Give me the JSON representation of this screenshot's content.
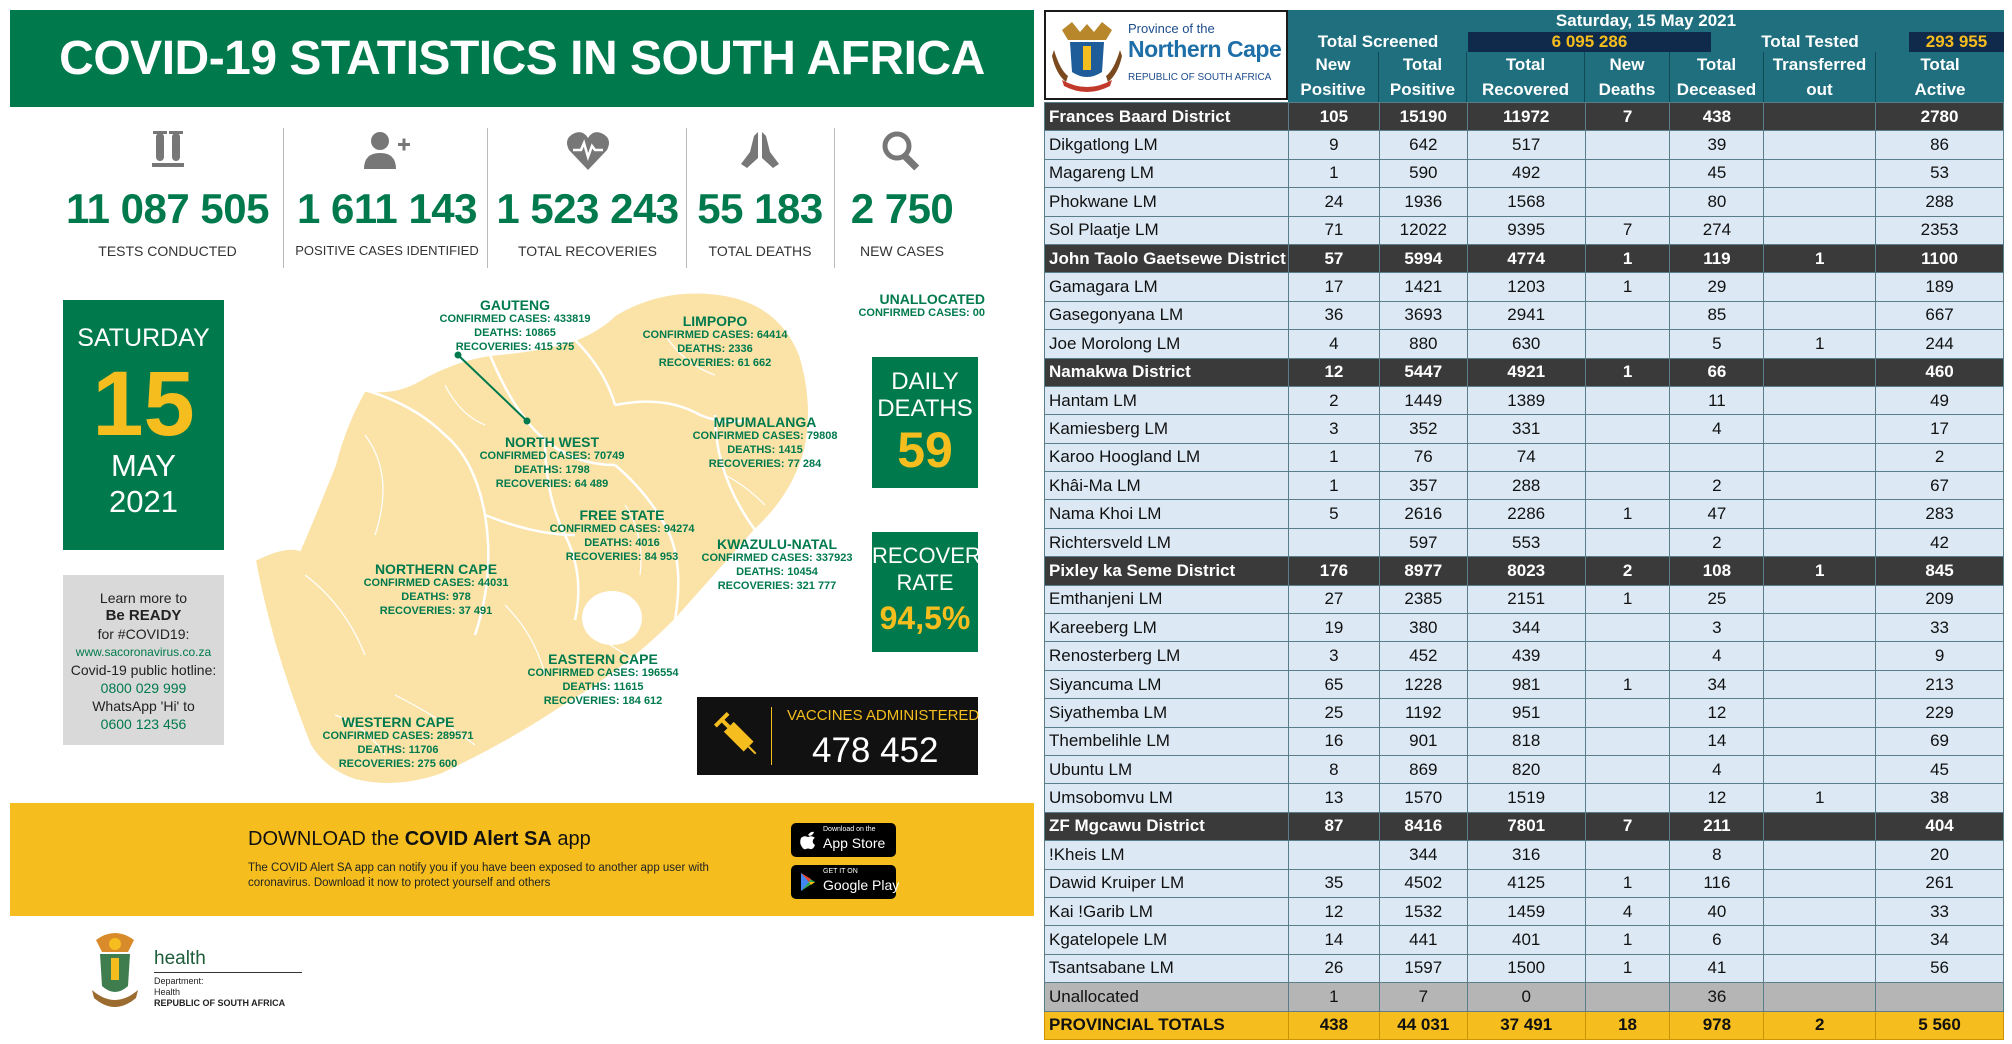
{
  "infographic": {
    "title": "COVID-19 STATISTICS IN SOUTH AFRICA",
    "stats": [
      {
        "icon": "test-tubes-icon",
        "value": "11 087 505",
        "label": "TESTS CONDUCTED"
      },
      {
        "icon": "add-person-icon",
        "value": "1 611 143",
        "label": "POSITIVE CASES IDENTIFIED"
      },
      {
        "icon": "heartbeat-icon",
        "value": "1 523 243",
        "label": "TOTAL RECOVERIES"
      },
      {
        "icon": "praying-hands-icon",
        "value": "55 183",
        "label": "TOTAL DEATHS"
      },
      {
        "icon": "magnifier-icon",
        "value": "2 750",
        "label": "NEW CASES"
      }
    ],
    "date": {
      "weekday": "SATURDAY",
      "day": "15",
      "month": "MAY",
      "year": "2021"
    },
    "info": {
      "l1": "Learn more to",
      "l2": "Be READY",
      "l3": "for #COVID19:",
      "l4": "www.sacoronavirus.co.za",
      "l5": "Covid-19 public hotline:",
      "l6": "0800 029 999",
      "l7": "WhatsApp 'Hi' to",
      "l8": "0600 123 456"
    },
    "provinces": [
      {
        "name": "GAUTENG",
        "cases": "CONFIRMED CASES: 433819",
        "deaths": "DEATHS: 10865",
        "rec": "RECOVERIES: 415 375"
      },
      {
        "name": "LIMPOPO",
        "cases": "CONFIRMED CASES: 64414",
        "deaths": "DEATHS: 2336",
        "rec": "RECOVERIES: 61 662"
      },
      {
        "name": "MPUMALANGA",
        "cases": "CONFIRMED CASES: 79808",
        "deaths": "DEATHS: 1415",
        "rec": "RECOVERIES: 77 284"
      },
      {
        "name": "NORTH WEST",
        "cases": "CONFIRMED CASES: 70749",
        "deaths": "DEATHS: 1798",
        "rec": "RECOVERIES: 64 489"
      },
      {
        "name": "FREE STATE",
        "cases": "CONFIRMED CASES: 94274",
        "deaths": "DEATHS: 4016",
        "rec": "RECOVERIES: 84 953"
      },
      {
        "name": "KWAZULU-NATAL",
        "cases": "CONFIRMED CASES: 337923",
        "deaths": "DEATHS: 10454",
        "rec": "RECOVERIES: 321 777"
      },
      {
        "name": "NORTHERN CAPE",
        "cases": "CONFIRMED CASES: 44031",
        "deaths": "DEATHS: 978",
        "rec": "RECOVERIES: 37 491"
      },
      {
        "name": "EASTERN CAPE",
        "cases": "CONFIRMED CASES: 196554",
        "deaths": "DEATHS: 11615",
        "rec": "RECOVERIES: 184 612"
      },
      {
        "name": "WESTERN CAPE",
        "cases": "CONFIRMED CASES: 289571",
        "deaths": "DEATHS: 11706",
        "rec": "RECOVERIES: 275 600"
      }
    ],
    "unallocated": {
      "name": "UNALLOCATED",
      "cases": "CONFIRMED CASES: 00"
    },
    "daily_deaths": {
      "l1": "DAILY",
      "l2": "DEATHS",
      "value": "59"
    },
    "recovery_rate": {
      "l1": "RECOVERY",
      "l2": "RATE",
      "value": "94,5%"
    },
    "vaccines": {
      "label": "VACCINES ADMINISTERED",
      "value": "478 452"
    },
    "app": {
      "download_prefix": "DOWNLOAD the ",
      "app_name": "COVID Alert SA",
      "download_suffix": " app",
      "desc": "The COVID Alert SA app can notify you if you have been exposed to another app user with coronavirus. Download it now to protect yourself and others",
      "appstore_small": "Download on the",
      "appstore_big": "App Store",
      "gplay_small": "GET IT ON",
      "gplay_big": "Google Play"
    },
    "health": {
      "word": "health",
      "d1": "Department:",
      "d2": "Health",
      "d3": "REPUBLIC OF SOUTH AFRICA"
    }
  },
  "table": {
    "logo": {
      "l1": "Province of the",
      "l2": "Northern Cape",
      "l3": "REPUBLIC OF SOUTH AFRICA"
    },
    "date": "Saturday, 15 May 2021",
    "screened_label": "Total Screened",
    "screened_value": "6 095 286",
    "tested_label": "Total Tested",
    "tested_value": "293 955",
    "columns": [
      {
        "l1": "New",
        "l2": "Positive"
      },
      {
        "l1": "Total",
        "l2": "Positive"
      },
      {
        "l1": "Total",
        "l2": "Recovered"
      },
      {
        "l1": "New",
        "l2": "Deaths"
      },
      {
        "l1": "Total",
        "l2": "Deceased"
      },
      {
        "l1": "Transferred",
        "l2": "out"
      },
      {
        "l1": "Total",
        "l2": "Active"
      }
    ],
    "rows": [
      {
        "type": "dist",
        "cells": [
          "Frances Baard District",
          "105",
          "15190",
          "11972",
          "7",
          "438",
          "",
          "2780"
        ]
      },
      {
        "type": "lm",
        "cells": [
          "Dikgatlong LM",
          "9",
          "642",
          "517",
          "",
          "39",
          "",
          "86"
        ]
      },
      {
        "type": "lm",
        "cells": [
          "Magareng LM",
          "1",
          "590",
          "492",
          "",
          "45",
          "",
          "53"
        ]
      },
      {
        "type": "lm",
        "cells": [
          "Phokwane LM",
          "24",
          "1936",
          "1568",
          "",
          "80",
          "",
          "288"
        ]
      },
      {
        "type": "lm",
        "cells": [
          "Sol Plaatje LM",
          "71",
          "12022",
          "9395",
          "7",
          "274",
          "",
          "2353"
        ]
      },
      {
        "type": "dist",
        "cells": [
          "John Taolo Gaetsewe District",
          "57",
          "5994",
          "4774",
          "1",
          "119",
          "1",
          "1100"
        ]
      },
      {
        "type": "lm",
        "cells": [
          "Gamagara LM",
          "17",
          "1421",
          "1203",
          "1",
          "29",
          "",
          "189"
        ]
      },
      {
        "type": "lm",
        "cells": [
          "Gasegonyana LM",
          "36",
          "3693",
          "2941",
          "",
          "85",
          "",
          "667"
        ]
      },
      {
        "type": "lm",
        "cells": [
          "Joe Morolong LM",
          "4",
          "880",
          "630",
          "",
          "5",
          "1",
          "244"
        ]
      },
      {
        "type": "dist",
        "cells": [
          "Namakwa District",
          "12",
          "5447",
          "4921",
          "1",
          "66",
          "",
          "460"
        ]
      },
      {
        "type": "lm",
        "cells": [
          "Hantam LM",
          "2",
          "1449",
          "1389",
          "",
          "11",
          "",
          "49"
        ]
      },
      {
        "type": "lm",
        "cells": [
          "Kamiesberg LM",
          "3",
          "352",
          "331",
          "",
          "4",
          "",
          "17"
        ]
      },
      {
        "type": "lm",
        "cells": [
          "Karoo Hoogland LM",
          "1",
          "76",
          "74",
          "",
          "",
          "",
          "2"
        ]
      },
      {
        "type": "lm",
        "cells": [
          "Khâi-Ma LM",
          "1",
          "357",
          "288",
          "",
          "2",
          "",
          "67"
        ]
      },
      {
        "type": "lm",
        "cells": [
          "Nama Khoi LM",
          "5",
          "2616",
          "2286",
          "1",
          "47",
          "",
          "283"
        ]
      },
      {
        "type": "lm",
        "cells": [
          "Richtersveld LM",
          "",
          "597",
          "553",
          "",
          "2",
          "",
          "42"
        ]
      },
      {
        "type": "dist",
        "cells": [
          "Pixley ka Seme District",
          "176",
          "8977",
          "8023",
          "2",
          "108",
          "1",
          "845"
        ]
      },
      {
        "type": "lm",
        "cells": [
          "Emthanjeni LM",
          "27",
          "2385",
          "2151",
          "1",
          "25",
          "",
          "209"
        ]
      },
      {
        "type": "lm",
        "cells": [
          "Kareeberg LM",
          "19",
          "380",
          "344",
          "",
          "3",
          "",
          "33"
        ]
      },
      {
        "type": "lm",
        "cells": [
          "Renosterberg LM",
          "3",
          "452",
          "439",
          "",
          "4",
          "",
          "9"
        ]
      },
      {
        "type": "lm",
        "cells": [
          "Siyancuma LM",
          "65",
          "1228",
          "981",
          "1",
          "34",
          "",
          "213"
        ]
      },
      {
        "type": "lm",
        "cells": [
          "Siyathemba LM",
          "25",
          "1192",
          "951",
          "",
          "12",
          "",
          "229"
        ]
      },
      {
        "type": "lm",
        "cells": [
          "Thembelihle LM",
          "16",
          "901",
          "818",
          "",
          "14",
          "",
          "69"
        ]
      },
      {
        "type": "lm",
        "cells": [
          "Ubuntu LM",
          "8",
          "869",
          "820",
          "",
          "4",
          "",
          "45"
        ]
      },
      {
        "type": "lm",
        "cells": [
          "Umsobomvu LM",
          "13",
          "1570",
          "1519",
          "",
          "12",
          "1",
          "38"
        ]
      },
      {
        "type": "dist",
        "cells": [
          "ZF Mgcawu District",
          "87",
          "8416",
          "7801",
          "7",
          "211",
          "",
          "404"
        ]
      },
      {
        "type": "lm",
        "cells": [
          "!Kheis LM",
          "",
          "344",
          "316",
          "",
          "8",
          "",
          "20"
        ]
      },
      {
        "type": "lm",
        "cells": [
          "Dawid Kruiper LM",
          "35",
          "4502",
          "4125",
          "1",
          "116",
          "",
          "261"
        ]
      },
      {
        "type": "lm",
        "cells": [
          "Kai !Garib LM",
          "12",
          "1532",
          "1459",
          "4",
          "40",
          "",
          "33"
        ]
      },
      {
        "type": "lm",
        "cells": [
          "Kgatelopele LM",
          "14",
          "441",
          "401",
          "1",
          "6",
          "",
          "34"
        ]
      },
      {
        "type": "lm",
        "cells": [
          "Tsantsabane LM",
          "26",
          "1597",
          "1500",
          "1",
          "41",
          "",
          "56"
        ]
      },
      {
        "type": "un",
        "cells": [
          "Unallocated",
          "1",
          "7",
          "0",
          "",
          "36",
          "",
          ""
        ]
      },
      {
        "type": "tot",
        "cells": [
          "PROVINCIAL TOTALS",
          "438",
          "44 031",
          "37 491",
          "18",
          "978",
          "2",
          "5 560"
        ]
      }
    ]
  },
  "colors": {
    "green": "#007a4d",
    "yellow": "#f5be1e",
    "teal": "#1f6f7e",
    "navy": "#0f2a4a"
  }
}
